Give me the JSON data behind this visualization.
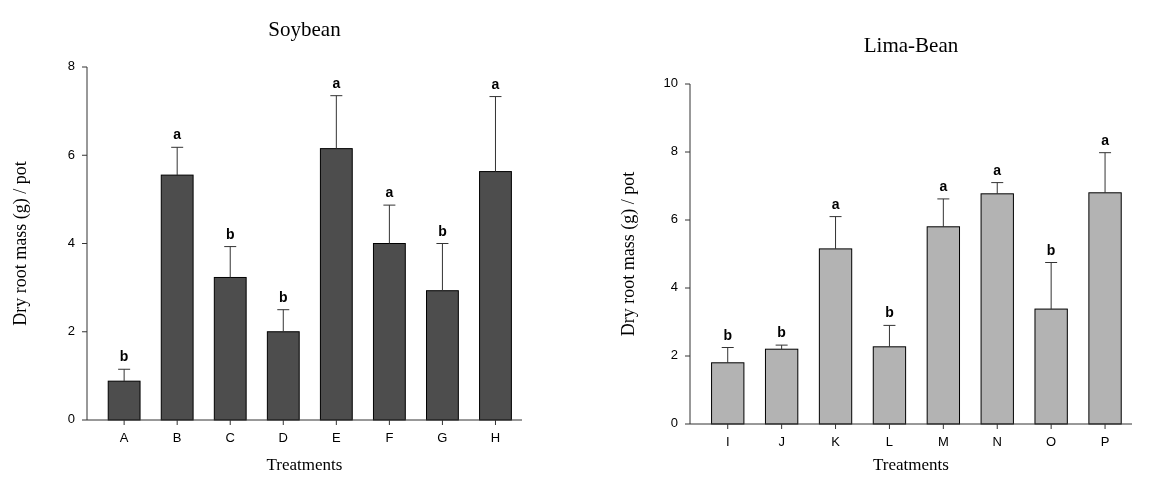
{
  "chart_data": [
    {
      "type": "bar",
      "title": "Soybean",
      "xlabel": "Treatments",
      "ylabel": "Dry root mass (g) / pot",
      "categories": [
        "A",
        "B",
        "C",
        "D",
        "E",
        "F",
        "G",
        "H"
      ],
      "values": [
        0.88,
        5.55,
        3.23,
        2.0,
        6.15,
        4.0,
        2.93,
        5.63
      ],
      "errors": [
        [
          0.88,
          1.15
        ],
        [
          5.55,
          6.18
        ],
        [
          3.23,
          3.93
        ],
        [
          2.0,
          2.5
        ],
        [
          6.15,
          7.35
        ],
        [
          4.0,
          4.87
        ],
        [
          2.93,
          4.0
        ],
        [
          5.63,
          7.33
        ]
      ],
      "color": "#4d4d4d",
      "ylim": [
        0,
        8
      ],
      "yticks": [
        0,
        2,
        4,
        6,
        8
      ],
      "annotations": [
        {
          "text": "b",
          "x": "A",
          "y": 1.15
        },
        {
          "text": "a",
          "x": "B",
          "y": 6.18
        },
        {
          "text": "b",
          "x": "C",
          "y": 3.93
        },
        {
          "text": "b",
          "x": "D",
          "y": 2.5
        },
        {
          "text": "a",
          "x": "E",
          "y": 7.35
        },
        {
          "text": "a",
          "x": "F",
          "y": 4.87
        },
        {
          "text": "b",
          "x": "G",
          "y": 4.0
        },
        {
          "text": "a",
          "x": "H",
          "y": 7.33
        }
      ]
    },
    {
      "type": "bar",
      "title": "Lima-Bean",
      "xlabel": "Treatments",
      "ylabel": "Dry root mass (g) / pot",
      "categories": [
        "I",
        "J",
        "K",
        "L",
        "M",
        "N",
        "O",
        "P"
      ],
      "values": [
        1.8,
        2.2,
        5.15,
        2.27,
        5.8,
        6.77,
        3.38,
        6.8
      ],
      "errors": [
        [
          1.8,
          2.25
        ],
        [
          2.2,
          2.32
        ],
        [
          5.15,
          6.1
        ],
        [
          2.27,
          2.9
        ],
        [
          5.8,
          6.62
        ],
        [
          6.77,
          7.1
        ],
        [
          3.38,
          4.75
        ],
        [
          6.8,
          7.98
        ]
      ],
      "color": "#b3b3b3",
      "ylim": [
        0,
        10
      ],
      "yticks": [
        0,
        2,
        4,
        6,
        8,
        10
      ],
      "annotations": [
        {
          "text": "b",
          "x": "I",
          "y": 2.25
        },
        {
          "text": "b",
          "x": "J",
          "y": 2.32
        },
        {
          "text": "a",
          "x": "K",
          "y": 6.1
        },
        {
          "text": "b",
          "x": "L",
          "y": 2.9
        },
        {
          "text": "a",
          "x": "M",
          "y": 6.62
        },
        {
          "text": "a",
          "x": "N",
          "y": 7.1
        },
        {
          "text": "b",
          "x": "O",
          "y": 4.75
        },
        {
          "text": "a",
          "x": "P",
          "y": 7.98
        }
      ]
    }
  ]
}
